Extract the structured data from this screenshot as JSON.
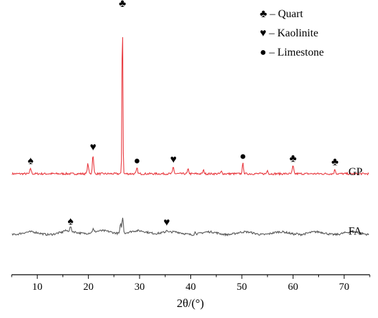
{
  "chart_data": {
    "type": "line",
    "title": "",
    "xlabel": "2θ/(°)",
    "ylabel": "",
    "xlim": [
      5,
      75
    ],
    "xticks": [
      "10",
      "20",
      "30",
      "40",
      "50",
      "60",
      "70"
    ],
    "grid": false,
    "legend_position": "top-right",
    "legend": [
      {
        "symbol": "♣",
        "text": "♣ – Quart"
      },
      {
        "symbol": "♥",
        "text": "♥ – Kaolinite"
      },
      {
        "symbol": "●",
        "text": "● – Limestone"
      }
    ],
    "series": [
      {
        "name": "GP",
        "color": "#e8373d",
        "baseline": 0.05,
        "peaks": [
          {
            "x": 8.7,
            "y": 0.05
          },
          {
            "x": 19.9,
            "y": 0.09
          },
          {
            "x": 20.9,
            "y": 0.17
          },
          {
            "x": 26.65,
            "y": 1.45
          },
          {
            "x": 29.5,
            "y": 0.05
          },
          {
            "x": 36.6,
            "y": 0.06
          },
          {
            "x": 39.5,
            "y": 0.04
          },
          {
            "x": 42.5,
            "y": 0.03
          },
          {
            "x": 46.0,
            "y": 0.02
          },
          {
            "x": 50.2,
            "y": 0.09
          },
          {
            "x": 55.0,
            "y": 0.03
          },
          {
            "x": 60.0,
            "y": 0.07
          },
          {
            "x": 68.2,
            "y": 0.04
          }
        ]
      },
      {
        "name": "FA",
        "color": "#555555",
        "baseline": -0.48,
        "peaks": [
          {
            "x": 16.5,
            "y": 0.04
          },
          {
            "x": 20.9,
            "y": 0.03
          },
          {
            "x": 26.3,
            "y": 0.08
          },
          {
            "x": 26.7,
            "y": 0.14
          },
          {
            "x": 35.3,
            "y": 0.03
          },
          {
            "x": 40.9,
            "y": 0.02
          },
          {
            "x": 60.8,
            "y": 0.01
          }
        ]
      }
    ],
    "annotations": [
      {
        "symbol": "♠",
        "x": 8.7,
        "series": "GP"
      },
      {
        "symbol": "♥",
        "x": 20.9,
        "series": "GP"
      },
      {
        "symbol": "♣",
        "x": 26.65,
        "series": "GP"
      },
      {
        "symbol": "●",
        "x": 29.5,
        "series": "GP"
      },
      {
        "symbol": "♥",
        "x": 36.6,
        "series": "GP"
      },
      {
        "symbol": "●",
        "x": 50.2,
        "series": "GP"
      },
      {
        "symbol": "♣",
        "x": 60.0,
        "series": "GP"
      },
      {
        "symbol": "♣",
        "x": 68.2,
        "series": "GP"
      },
      {
        "symbol": "♠",
        "x": 16.5,
        "series": "FA"
      },
      {
        "symbol": "♥",
        "x": 35.3,
        "series": "FA"
      }
    ]
  }
}
